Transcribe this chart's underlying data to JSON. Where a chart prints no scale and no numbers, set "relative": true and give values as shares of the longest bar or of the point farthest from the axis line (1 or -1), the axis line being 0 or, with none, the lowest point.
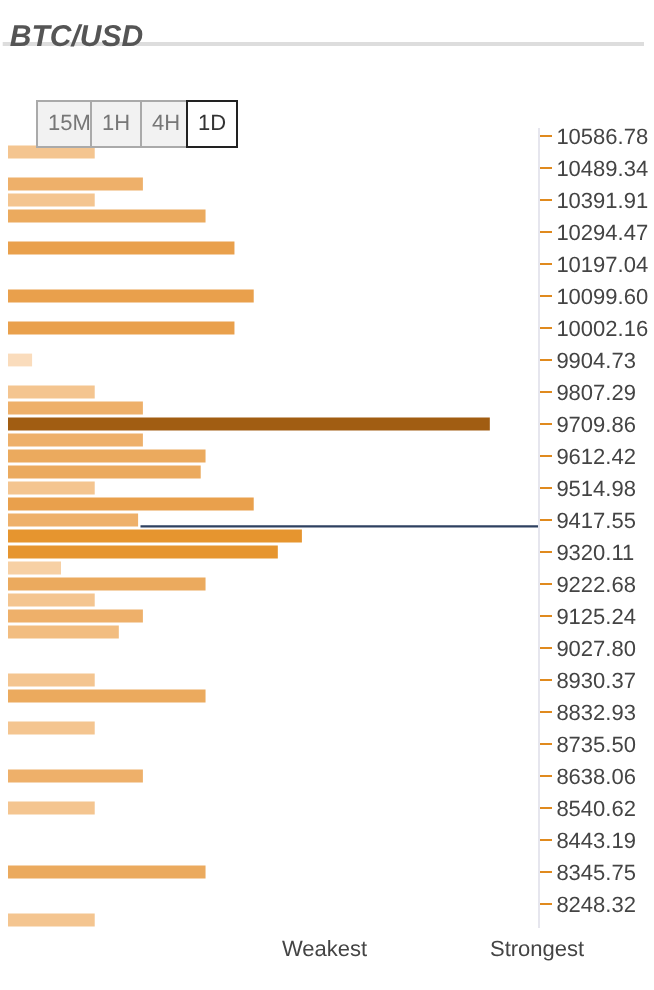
{
  "chart_data": {
    "type": "bar",
    "orientation": "horizontal",
    "relative": true,
    "title": "BTC/USD",
    "categories": [
      "10586.78",
      null,
      "10489.34",
      null,
      "10391.91",
      null,
      "10294.47",
      null,
      "10197.04",
      null,
      "10099.60",
      null,
      "10002.16",
      null,
      "9904.73",
      null,
      "9807.29",
      null,
      "9709.86",
      null,
      "9612.42",
      null,
      "9514.98",
      null,
      "9417.55",
      null,
      "9320.11",
      null,
      "9222.68",
      null,
      "9125.24",
      null,
      "9027.80",
      null,
      "8930.37",
      null,
      "8832.93",
      null,
      "8735.50",
      null,
      "8638.06",
      null,
      "8540.62",
      null,
      "8443.19",
      null,
      "8345.75",
      null,
      "8248.32",
      null
    ],
    "values": [
      null,
      0.18,
      null,
      0.28,
      0.18,
      0.41,
      null,
      0.47,
      null,
      null,
      0.51,
      null,
      0.47,
      null,
      0.05,
      null,
      0.18,
      0.28,
      1,
      0.28,
      0.41,
      0.4,
      0.18,
      0.51,
      0.27,
      0.61,
      0.56,
      0.11,
      0.41,
      0.18,
      0.28,
      0.23,
      null,
      null,
      0.18,
      0.41,
      null,
      0.18,
      null,
      null,
      0.28,
      null,
      0.18,
      null,
      null,
      null,
      0.41,
      null,
      null,
      0.18
    ],
    "colors": [
      "#f4c590",
      "#f4c590",
      "#f4c590",
      "#eeb06a",
      "#f4c590",
      "#ebaa5e",
      "#f4c590",
      "#e9a04c",
      "#f4c590",
      "#f4c590",
      "#e9a04c",
      "#f4c590",
      "#e9a04c",
      "#f4c590",
      "#fadcbc",
      "#f4c590",
      "#f4c590",
      "#eeb06a",
      "#a15d12",
      "#eeb06a",
      "#ebaa5e",
      "#ebaa5e",
      "#f4c590",
      "#e9a04c",
      "#eeb06a",
      "#e6952f",
      "#e6952f",
      "#f7d0a4",
      "#ebaa5e",
      "#f4c590",
      "#eeb06a",
      "#f2bd80",
      "#f4c590",
      "#f4c590",
      "#f4c590",
      "#ebaa5e",
      "#f4c590",
      "#f4c590",
      "#f4c590",
      "#f4c590",
      "#eeb06a",
      "#f4c590",
      "#f4c590",
      "#f4c590",
      "#f4c590",
      "#f4c590",
      "#ebaa5e",
      "#f4c590",
      "#f4c590",
      "#f4c590"
    ],
    "ref_lines": [
      {
        "axis": "y",
        "value": "9417.55",
        "color": "#2e4160"
      }
    ],
    "annotations": [
      "15M",
      "1H",
      "4H",
      "1D",
      "Weakest",
      "Strongest"
    ]
  }
}
